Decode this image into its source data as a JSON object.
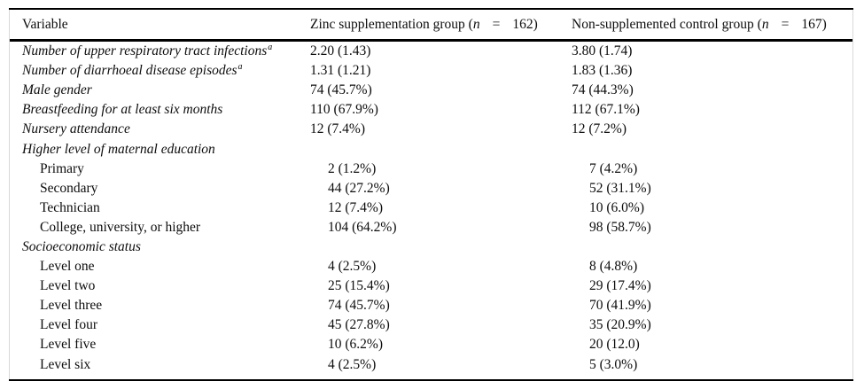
{
  "header": {
    "col1": "Variable",
    "col2": {
      "prefix": "Zinc supplementation group (",
      "n": "n",
      "eq": "=",
      "count": "162)"
    },
    "col3": {
      "prefix": "Non-supplemented control group (",
      "n": "n",
      "eq": "=",
      "count": "167)"
    }
  },
  "rows": [
    {
      "label": "Number of upper respiratory tract infections",
      "sup": "a",
      "zinc": "2.20 (1.43)",
      "control": "3.80 (1.74)"
    },
    {
      "label": "Number of diarrhoeal disease episodes",
      "sup": "a",
      "zinc": "1.31 (1.21)",
      "control": "1.83 (1.36)"
    },
    {
      "label": "Male gender",
      "zinc": "74 (45.7%)",
      "control": "74 (44.3%)"
    },
    {
      "label": "Breastfeeding for at least six months",
      "zinc": "110 (67.9%)",
      "control": "112 (67.1%)"
    },
    {
      "label": "Nursery attendance",
      "zinc": "12 (7.4%)",
      "control": "12 (7.2%)"
    },
    {
      "label": "Higher level of maternal education",
      "zinc": "",
      "control": ""
    },
    {
      "label": "Primary",
      "zinc": "2 (1.2%)",
      "control": "7 (4.2%)"
    },
    {
      "label": "Secondary",
      "zinc": "44 (27.2%)",
      "control": "52 (31.1%)"
    },
    {
      "label": "Technician",
      "zinc": "12 (7.4%)",
      "control": "10 (6.0%)"
    },
    {
      "label": "College, university, or higher",
      "zinc": "104 (64.2%)",
      "control": "98 (58.7%)"
    },
    {
      "label": "Socioeconomic status",
      "zinc": "",
      "control": ""
    },
    {
      "label": "Level one",
      "zinc": "4 (2.5%)",
      "control": "8 (4.8%)"
    },
    {
      "label": "Level two",
      "zinc": "25 (15.4%)",
      "control": "29 (17.4%)"
    },
    {
      "label": "Level three",
      "zinc": "74 (45.7%)",
      "control": "70 (41.9%)"
    },
    {
      "label": "Level four",
      "zinc": "45 (27.8%)",
      "control": "35 (20.9%)"
    },
    {
      "label": "Level five",
      "zinc": "10 (6.2%)",
      "control": "20 (12.0)"
    },
    {
      "label": "Level six",
      "zinc": "4 (2.5%)",
      "control": "5 (3.0%)"
    }
  ]
}
